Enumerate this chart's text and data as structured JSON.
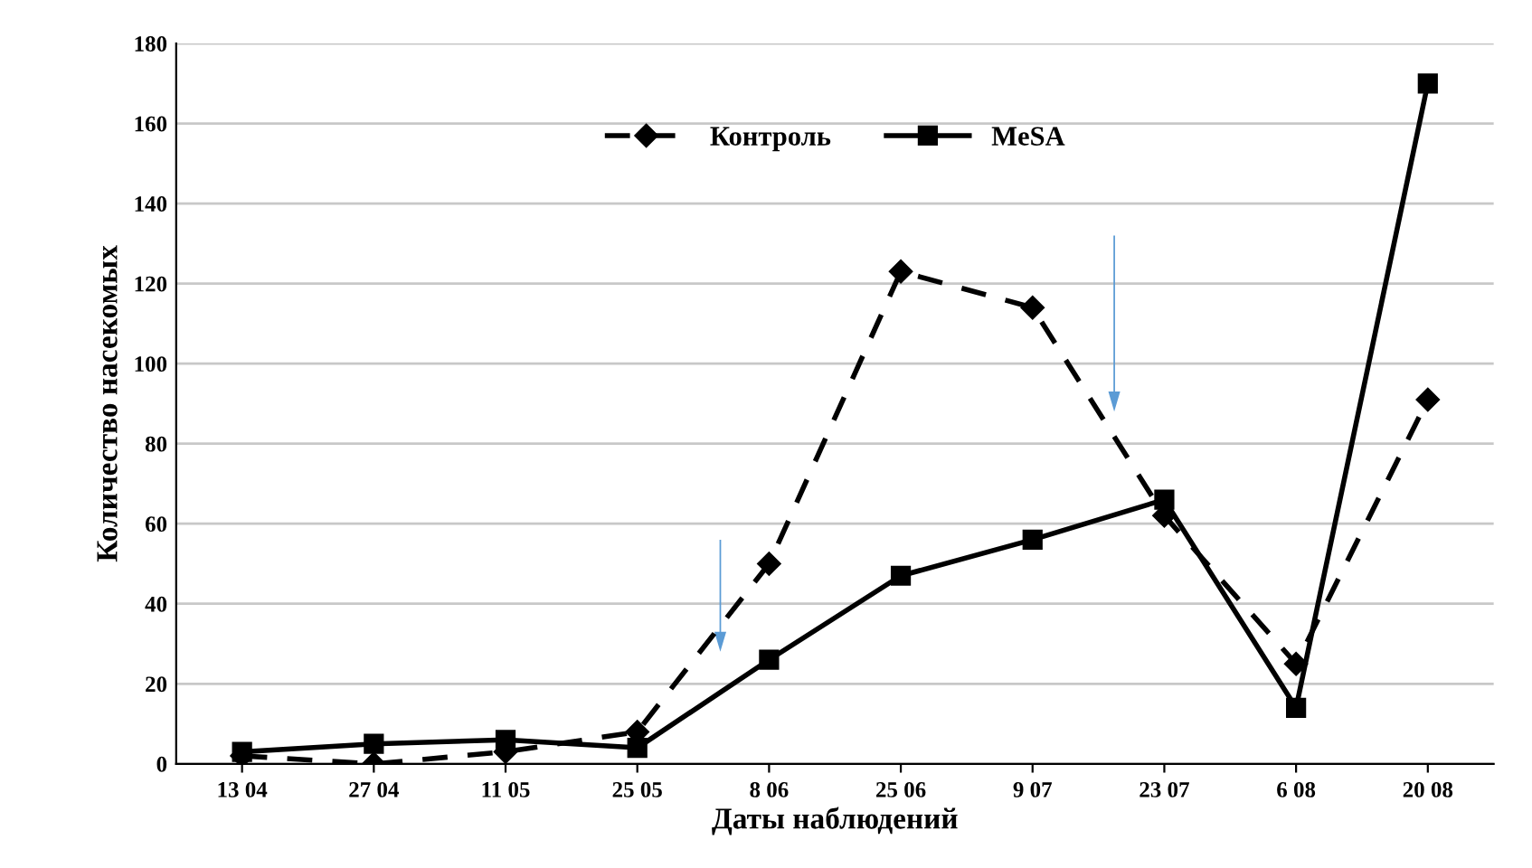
{
  "chart_data": {
    "type": "line",
    "xlabel": "Даты наблюдений",
    "ylabel": "Количество насекомых",
    "categories": [
      "13 04",
      "27 04",
      "11 05",
      "25 05",
      "8 06",
      "25 06",
      "9 07",
      "23 07",
      "6 08",
      "20 08"
    ],
    "series": [
      {
        "name": "Контроль",
        "color": "#000000",
        "marker": "diamond",
        "line_style": "dashed",
        "values": [
          2,
          0,
          3,
          8,
          50,
          123,
          114,
          62,
          25,
          91
        ]
      },
      {
        "name": "MeSA",
        "color": "#000000",
        "marker": "square",
        "line_style": "solid",
        "values": [
          3,
          5,
          6,
          4,
          26,
          47,
          56,
          66,
          14,
          170
        ]
      }
    ],
    "ylim": [
      0,
      180
    ],
    "yticks": [
      0,
      20,
      40,
      60,
      80,
      100,
      120,
      140,
      160,
      180
    ],
    "grid": "y",
    "legend": "top"
  }
}
